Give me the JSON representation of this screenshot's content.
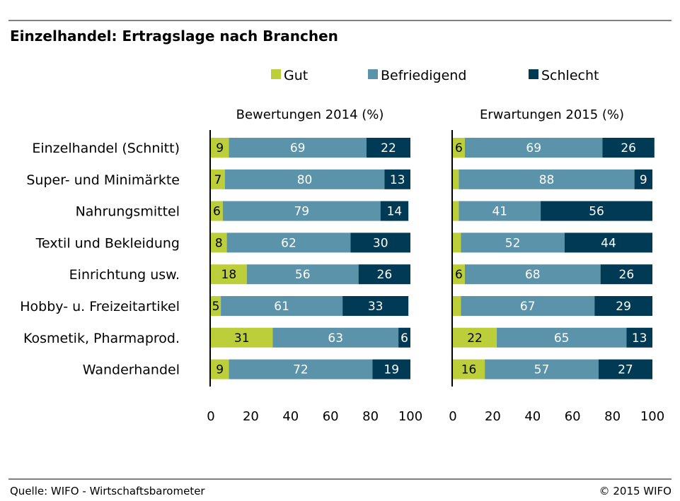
{
  "title": "Einzelhandel: Ertragslage nach Branchen",
  "source": "Quelle: WIFO - Wirtschaftsbarometer",
  "copyright": "© 2015 WIFO",
  "colors": {
    "gut": "#bccf3a",
    "befriedigend": "#5b93aa",
    "schlecht": "#003a54",
    "label_light": "#ffffff",
    "label_dark": "#000000"
  },
  "legend": [
    {
      "name": "Gut",
      "color_key": "gut"
    },
    {
      "name": "Befriedigend",
      "color_key": "befriedigend"
    },
    {
      "name": "Schlecht",
      "color_key": "schlecht"
    }
  ],
  "chart_data": [
    {
      "type": "bar",
      "orientation": "horizontal",
      "stacked": true,
      "title": "Bewertungen 2014 (%)",
      "categories": [
        "Einzelhandel (Schnitt)",
        "Super- und Minimärkte",
        "Nahrungsmittel",
        "Textil und Bekleidung",
        "Einrichtung usw.",
        "Hobby- u. Freizeitartikel",
        "Kosmetik, Pharmaprod.",
        "Wanderhandel"
      ],
      "series": [
        {
          "name": "Gut",
          "values": [
            9,
            7,
            6,
            8,
            18,
            5,
            31,
            9
          ]
        },
        {
          "name": "Befriedigend",
          "values": [
            69,
            80,
            79,
            62,
            56,
            61,
            63,
            72
          ]
        },
        {
          "name": "Schlecht",
          "values": [
            22,
            13,
            14,
            30,
            26,
            33,
            6,
            19
          ]
        }
      ],
      "show_labels": [
        [
          true,
          true,
          true,
          true,
          true,
          true,
          true,
          true
        ],
        [
          true,
          true,
          true,
          true,
          true,
          true,
          true,
          true
        ],
        [
          true,
          true,
          true,
          true,
          true,
          true,
          true,
          true
        ]
      ],
      "xlim": [
        0,
        100
      ],
      "xticks": [
        0,
        20,
        40,
        60,
        80,
        100
      ],
      "legend_position": "top",
      "grid": false
    },
    {
      "type": "bar",
      "orientation": "horizontal",
      "stacked": true,
      "title": "Erwartungen 2015 (%)",
      "categories": [
        "Einzelhandel (Schnitt)",
        "Super- und Minimärkte",
        "Nahrungsmittel",
        "Textil und Bekleidung",
        "Einrichtung usw.",
        "Hobby- u. Freizeitartikel",
        "Kosmetik, Pharmaprod.",
        "Wanderhandel"
      ],
      "series": [
        {
          "name": "Gut",
          "values": [
            6,
            3,
            3,
            4,
            6,
            4,
            22,
            16
          ]
        },
        {
          "name": "Befriedigend",
          "values": [
            69,
            88,
            41,
            52,
            68,
            67,
            65,
            57
          ]
        },
        {
          "name": "Schlecht",
          "values": [
            26,
            9,
            56,
            44,
            26,
            29,
            13,
            27
          ]
        }
      ],
      "show_labels": [
        [
          true,
          false,
          false,
          false,
          true,
          false,
          true,
          true
        ],
        [
          true,
          true,
          true,
          true,
          true,
          true,
          true,
          true
        ],
        [
          true,
          true,
          true,
          true,
          true,
          true,
          true,
          true
        ]
      ],
      "xlim": [
        0,
        100
      ],
      "xticks": [
        0,
        20,
        40,
        60,
        80,
        100
      ],
      "legend_position": "top",
      "grid": false
    }
  ]
}
